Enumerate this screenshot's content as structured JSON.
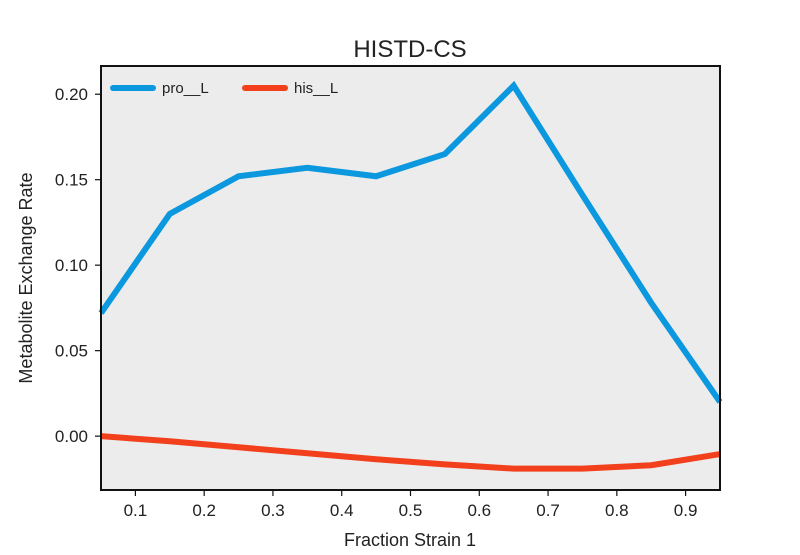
{
  "chart_data": {
    "type": "line",
    "title": "HISTD-CS",
    "xlabel": "Fraction Strain 1",
    "ylabel": "Metabolite Exchange Rate",
    "xlim": [
      0.05,
      0.95
    ],
    "ylim": [
      -0.0315,
      0.2165
    ],
    "xticks": [
      0.1,
      0.2,
      0.3,
      0.4,
      0.5,
      0.6,
      0.7,
      0.8,
      0.9
    ],
    "xtick_labels": [
      "0.1",
      "0.2",
      "0.3",
      "0.4",
      "0.5",
      "0.6",
      "0.7",
      "0.8",
      "0.9"
    ],
    "yticks": [
      0.0,
      0.05,
      0.1,
      0.15,
      0.2
    ],
    "ytick_labels": [
      "0.00",
      "0.05",
      "0.10",
      "0.15",
      "0.20"
    ],
    "grid": false,
    "legend_position": "top-left",
    "background": "#ececec",
    "x": [
      0.05,
      0.15,
      0.25,
      0.35,
      0.45,
      0.55,
      0.65,
      0.75,
      0.85,
      0.95
    ],
    "series": [
      {
        "name": "pro__L",
        "color": "#0b98de",
        "values": [
          0.072,
          0.13,
          0.152,
          0.157,
          0.152,
          0.165,
          0.205,
          0.141,
          0.078,
          0.02
        ]
      },
      {
        "name": "his__L",
        "color": "#f2401c",
        "values": [
          0.0,
          -0.003,
          -0.0065,
          -0.01,
          -0.0135,
          -0.0165,
          -0.019,
          -0.019,
          -0.017,
          -0.0105
        ]
      }
    ]
  }
}
